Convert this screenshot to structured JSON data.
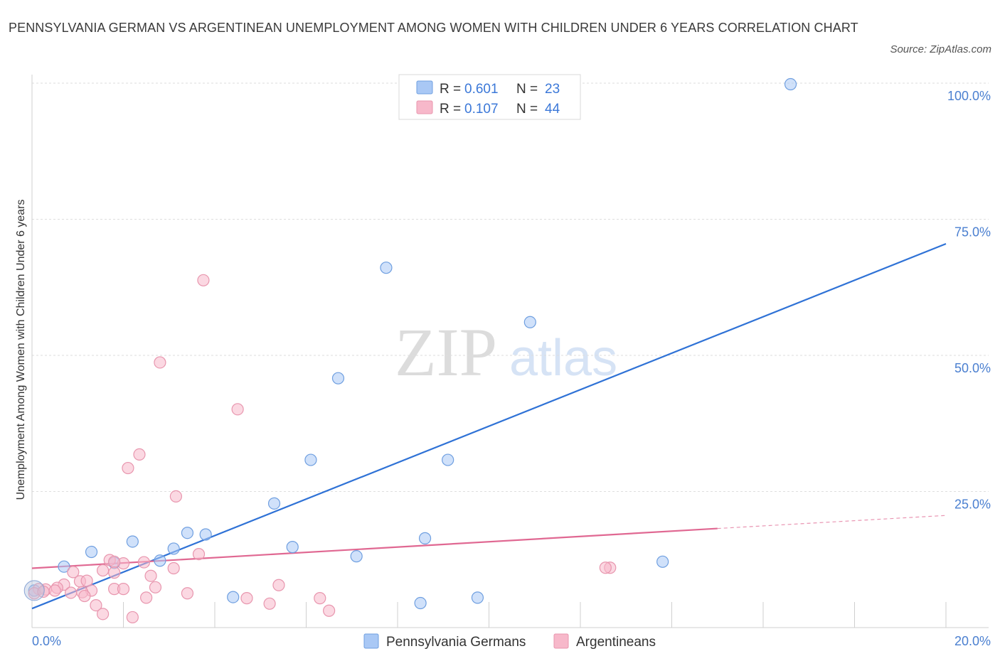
{
  "title": "PENNSYLVANIA GERMAN VS ARGENTINEAN UNEMPLOYMENT AMONG WOMEN WITH CHILDREN UNDER 6 YEARS CORRELATION CHART",
  "source": "Source: ZipAtlas.com",
  "watermark": {
    "zip": "ZIP",
    "atlas": "atlas"
  },
  "legend": [
    {
      "r_label": "R =",
      "r": "0.601",
      "n_label": "N =",
      "n": "23",
      "color": "#a9c8f5"
    },
    {
      "r_label": "R =",
      "r": "0.107",
      "n_label": "N =",
      "n": "44",
      "color": "#f7b8ca"
    }
  ],
  "bottom_legend": [
    "Pennsylvania Germans",
    "Argentineans"
  ],
  "chart_data": {
    "type": "scatter",
    "title": "PENNSYLVANIA GERMAN VS ARGENTINEAN UNEMPLOYMENT AMONG WOMEN WITH CHILDREN UNDER 6 YEARS CORRELATION CHART",
    "xlabel": "",
    "ylabel": "Unemployment Among Women with Children Under 6 years",
    "xlim": [
      0,
      20
    ],
    "ylim": [
      0,
      100
    ],
    "x_tick_labels": [
      "0.0%",
      "20.0%"
    ],
    "y_tick_labels": [
      "100.0%",
      "75.0%",
      "50.0%",
      "25.0%"
    ],
    "y_ticks": [
      100,
      75,
      50,
      25
    ],
    "series": [
      {
        "name": "Pennsylvania Germans",
        "color": "#a9c8f5",
        "edge": "#6f9fe0",
        "line_color": "#2f72d6",
        "trend": {
          "x0": 0,
          "y0": 3.5,
          "x1": 20,
          "y1": 70.5
        },
        "points": [
          [
            16.6,
            99.8
          ],
          [
            7.75,
            66.1
          ],
          [
            10.9,
            56.1
          ],
          [
            6.7,
            45.8
          ],
          [
            6.1,
            30.8
          ],
          [
            9.1,
            30.8
          ],
          [
            5.3,
            22.8
          ],
          [
            3.8,
            17.1
          ],
          [
            3.4,
            17.4
          ],
          [
            2.2,
            15.8
          ],
          [
            1.3,
            13.9
          ],
          [
            1.8,
            11.9
          ],
          [
            2.8,
            12.3
          ],
          [
            3.1,
            14.5
          ],
          [
            5.7,
            14.8
          ],
          [
            7.1,
            13.1
          ],
          [
            8.6,
            16.4
          ],
          [
            13.8,
            12.1
          ],
          [
            0.7,
            11.2
          ],
          [
            4.4,
            5.6
          ],
          [
            8.5,
            4.5
          ],
          [
            9.75,
            5.5
          ],
          [
            0.05,
            6.8
          ]
        ]
      },
      {
        "name": "Argentineans",
        "color": "#f7b8ca",
        "edge": "#e896ae",
        "line_color": "#e06892",
        "trend": {
          "x0": 0,
          "y0": 10.9,
          "x1": 15.0,
          "y1": 18.2
        },
        "trend_dashed": {
          "x0": 15.0,
          "y0": 18.2,
          "x1": 20,
          "y1": 20.6
        },
        "points": [
          [
            3.75,
            63.8
          ],
          [
            2.8,
            48.7
          ],
          [
            4.5,
            40.1
          ],
          [
            2.35,
            31.8
          ],
          [
            2.1,
            29.3
          ],
          [
            3.15,
            24.1
          ],
          [
            3.65,
            13.5
          ],
          [
            1.7,
            12.4
          ],
          [
            2.0,
            11.8
          ],
          [
            1.8,
            12.1
          ],
          [
            2.45,
            12.0
          ],
          [
            1.55,
            10.5
          ],
          [
            0.9,
            10.2
          ],
          [
            1.8,
            10.1
          ],
          [
            3.1,
            10.9
          ],
          [
            2.6,
            9.5
          ],
          [
            1.05,
            8.5
          ],
          [
            1.2,
            8.6
          ],
          [
            0.7,
            7.9
          ],
          [
            2.7,
            7.4
          ],
          [
            1.8,
            7.1
          ],
          [
            2.0,
            7.1
          ],
          [
            1.3,
            6.8
          ],
          [
            0.55,
            7.3
          ],
          [
            0.3,
            7.0
          ],
          [
            0.85,
            6.4
          ],
          [
            1.1,
            6.5
          ],
          [
            3.4,
            6.3
          ],
          [
            0.5,
            6.8
          ],
          [
            0.15,
            7.1
          ],
          [
            0.05,
            6.3
          ],
          [
            0.25,
            6.6
          ],
          [
            4.7,
            5.4
          ],
          [
            6.3,
            5.4
          ],
          [
            5.4,
            7.8
          ],
          [
            2.5,
            5.5
          ],
          [
            1.15,
            5.8
          ],
          [
            5.2,
            4.4
          ],
          [
            1.4,
            4.1
          ],
          [
            6.5,
            3.1
          ],
          [
            1.55,
            2.5
          ],
          [
            2.2,
            1.9
          ],
          [
            12.65,
            11.0
          ],
          [
            12.55,
            11.0
          ]
        ]
      }
    ]
  }
}
